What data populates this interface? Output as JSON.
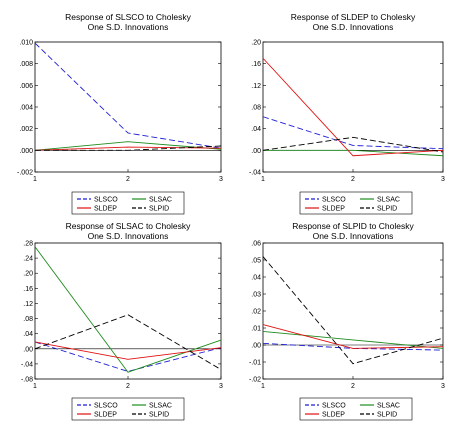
{
  "chart_data": [
    {
      "type": "line",
      "title": "Response of SLSCO to Cholesky",
      "subtitle": "One S.D. Innovations",
      "x": [
        1,
        2,
        3
      ],
      "x_ticks": [
        "1",
        "2",
        "3"
      ],
      "ylim": [
        -0.002,
        0.01
      ],
      "y_ticks": [
        ".010",
        ".008",
        ".006",
        ".004",
        ".002",
        ".000",
        "-.002"
      ],
      "y_tick_values": [
        0.01,
        0.008,
        0.006,
        0.004,
        0.002,
        0.0,
        -0.002
      ],
      "series": [
        {
          "name": "SLSCO",
          "values": [
            0.0099,
            0.0016,
            0.0002
          ]
        },
        {
          "name": "SLSAC",
          "values": [
            0.0,
            0.0008,
            0.0001
          ]
        },
        {
          "name": "SLDEP",
          "values": [
            0.0,
            0.0003,
            0.0002
          ]
        },
        {
          "name": "SLPID",
          "values": [
            0.0,
            0.0,
            0.0004
          ]
        }
      ],
      "legend_position": "bottom"
    },
    {
      "type": "line",
      "title": "Response of SLDEP to Cholesky",
      "subtitle": "One S.D. Innovations",
      "x": [
        1,
        2,
        3
      ],
      "x_ticks": [
        "1",
        "2",
        "3"
      ],
      "ylim": [
        -0.04,
        0.2
      ],
      "y_ticks": [
        ".20",
        ".16",
        ".12",
        ".08",
        ".04",
        ".00",
        "-.04"
      ],
      "y_tick_values": [
        0.2,
        0.16,
        0.12,
        0.08,
        0.04,
        0.0,
        -0.04
      ],
      "series": [
        {
          "name": "SLSCO",
          "values": [
            0.062,
            0.009,
            0.003
          ]
        },
        {
          "name": "SLSAC",
          "values": [
            0.0,
            0.0,
            -0.01
          ]
        },
        {
          "name": "SLDEP",
          "values": [
            0.17,
            -0.01,
            0.0
          ]
        },
        {
          "name": "SLPID",
          "values": [
            0.0,
            0.024,
            -0.003
          ]
        }
      ],
      "legend_position": "bottom"
    },
    {
      "type": "line",
      "title": "Response of SLSAC to Cholesky",
      "subtitle": "One S.D. Innovations",
      "x": [
        1,
        2,
        3
      ],
      "x_ticks": [
        "1",
        "2",
        "3"
      ],
      "ylim": [
        -0.08,
        0.28
      ],
      "y_ticks": [
        ".28",
        ".24",
        ".20",
        ".16",
        ".12",
        ".08",
        ".04",
        ".00",
        "-.04",
        "-.08"
      ],
      "y_tick_values": [
        0.28,
        0.24,
        0.2,
        0.16,
        0.12,
        0.08,
        0.04,
        0.0,
        -0.04,
        -0.08
      ],
      "series": [
        {
          "name": "SLSCO",
          "values": [
            0.018,
            -0.06,
            0.003
          ]
        },
        {
          "name": "SLSAC",
          "values": [
            0.27,
            -0.062,
            0.023
          ]
        },
        {
          "name": "SLDEP",
          "values": [
            0.018,
            -0.028,
            0.003
          ]
        },
        {
          "name": "SLPID",
          "values": [
            0.0,
            0.09,
            -0.055
          ]
        }
      ],
      "legend_position": "bottom"
    },
    {
      "type": "line",
      "title": "Response of SLPID to Cholesky",
      "subtitle": "One S.D. Innovations",
      "x": [
        1,
        2,
        3
      ],
      "x_ticks": [
        "1",
        "2",
        "3"
      ],
      "ylim": [
        -0.02,
        0.06
      ],
      "y_ticks": [
        ".06",
        ".05",
        ".04",
        ".03",
        ".02",
        ".01",
        ".00",
        "-.01",
        "-.02"
      ],
      "y_tick_values": [
        0.06,
        0.05,
        0.04,
        0.03,
        0.02,
        0.01,
        0.0,
        -0.01,
        -0.02
      ],
      "series": [
        {
          "name": "SLSCO",
          "values": [
            0.001,
            -0.002,
            -0.003
          ]
        },
        {
          "name": "SLSAC",
          "values": [
            0.008,
            0.003,
            -0.002
          ]
        },
        {
          "name": "SLDEP",
          "values": [
            0.012,
            -0.002,
            -0.001
          ]
        },
        {
          "name": "SLPID",
          "values": [
            0.052,
            -0.011,
            0.004
          ]
        }
      ],
      "legend_position": "bottom"
    }
  ],
  "series_colors": {
    "SLSCO": "#1f1fd6",
    "SLSAC": "#1e8c1e",
    "SLDEP": "#e01010",
    "SLPID": "#000000"
  },
  "series_dash": {
    "SLSCO": "dashed",
    "SLSAC": "solid",
    "SLDEP": "solid",
    "SLPID": "dashed"
  }
}
